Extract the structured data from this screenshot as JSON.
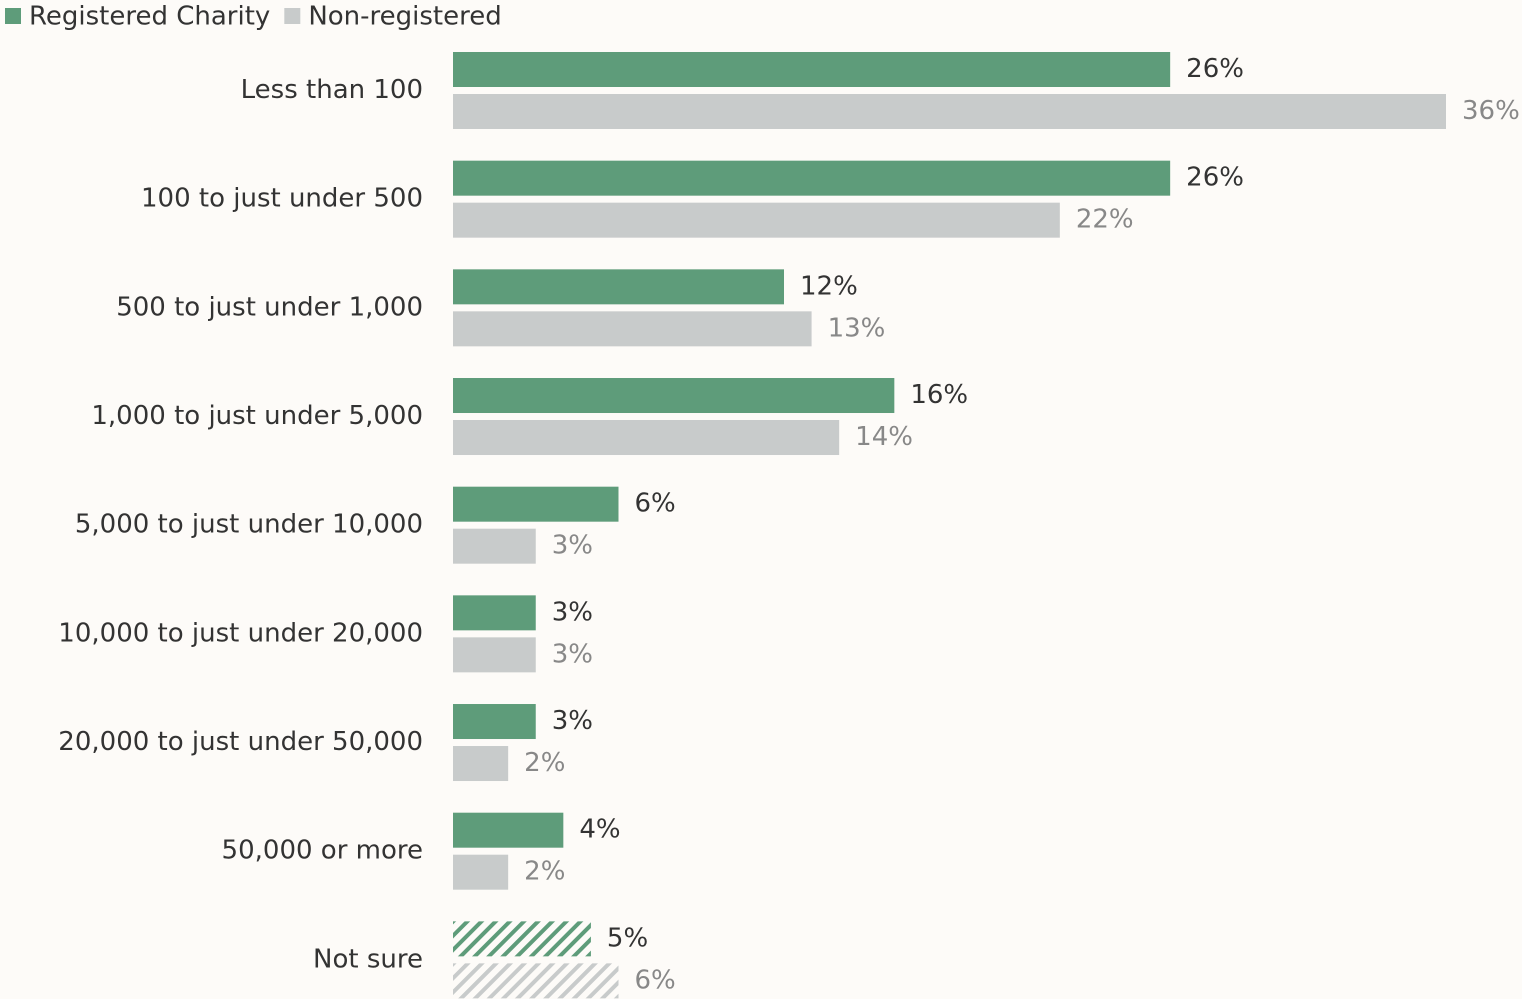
{
  "chart_data": {
    "type": "hbar",
    "categories": [
      "Less than 100",
      "100 to just under 500",
      "500 to just under 1,000",
      "1,000 to just under 5,000",
      "5,000 to just under 10,000",
      "10,000 to just under 20,000",
      "20,000 to just under 50,000",
      "50,000 or more",
      "Not sure"
    ],
    "series": [
      {
        "name": "Registered Charity",
        "color": "#5e9c7a",
        "values": [
          26,
          26,
          12,
          16,
          6,
          3,
          3,
          4,
          5
        ],
        "value_labels": [
          "26%",
          "26%",
          "12%",
          "16%",
          "6%",
          "3%",
          "3%",
          "4%",
          "5%"
        ]
      },
      {
        "name": "Non-registered",
        "color": "#c8cbcb",
        "values": [
          36,
          22,
          13,
          14,
          3,
          3,
          2,
          2,
          6
        ],
        "value_labels": [
          "36%",
          "22%",
          "13%",
          "14%",
          "3%",
          "3%",
          "2%",
          "2%",
          "6%"
        ]
      }
    ],
    "hatched": [
      false,
      false,
      false,
      false,
      false,
      false,
      false,
      false,
      true
    ],
    "legend": "top-left"
  }
}
